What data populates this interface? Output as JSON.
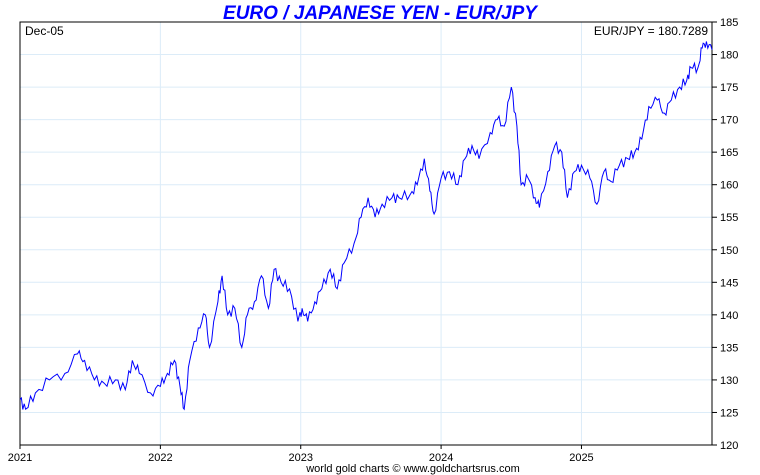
{
  "chart_data": {
    "type": "line",
    "title": "EURO / JAPANESE YEN - EUR/JPY",
    "date_label": "Dec-05",
    "current_value_label": "EUR/JPY = 180.7289",
    "footer": "world gold charts © www.goldchartsrus.com",
    "xlabel": "",
    "ylabel": "",
    "xlim": [
      2021,
      2025.93
    ],
    "ylim": [
      120,
      185
    ],
    "x_ticks": [
      2021,
      2022,
      2023,
      2024,
      2025
    ],
    "x_tick_labels": [
      "2021",
      "2022",
      "2023",
      "2024",
      "2025"
    ],
    "y_ticks": [
      120,
      125,
      130,
      135,
      140,
      145,
      150,
      155,
      160,
      165,
      170,
      175,
      180,
      185
    ],
    "y_tick_labels": [
      "120",
      "125",
      "130",
      "135",
      "140",
      "145",
      "150",
      "155",
      "160",
      "165",
      "170",
      "175",
      "180",
      "185"
    ],
    "grid": true,
    "line_color": "#0000ff",
    "series": [
      {
        "name": "EUR/JPY",
        "x": [
          2021.0,
          2021.04,
          2021.11,
          2021.21,
          2021.32,
          2021.41,
          2021.46,
          2021.53,
          2021.6,
          2021.68,
          2021.75,
          2021.8,
          2021.85,
          2021.93,
          2022.0,
          2022.05,
          2022.1,
          2022.14,
          2022.17,
          2022.21,
          2022.27,
          2022.32,
          2022.35,
          2022.41,
          2022.44,
          2022.48,
          2022.53,
          2022.58,
          2022.62,
          2022.67,
          2022.72,
          2022.77,
          2022.81,
          2022.86,
          2022.92,
          2022.98,
          2023.01,
          2023.05,
          2023.1,
          2023.15,
          2023.21,
          2023.26,
          2023.31,
          2023.38,
          2023.43,
          2023.48,
          2023.53,
          2023.58,
          2023.65,
          2023.7,
          2023.78,
          2023.83,
          2023.88,
          2023.92,
          2023.95,
          2024.0,
          2024.06,
          2024.12,
          2024.17,
          2024.22,
          2024.27,
          2024.35,
          2024.4,
          2024.45,
          2024.5,
          2024.54,
          2024.57,
          2024.62,
          2024.67,
          2024.7,
          2024.76,
          2024.81,
          2024.86,
          2024.9,
          2024.95,
          2025.0,
          2025.06,
          2025.11,
          2025.16,
          2025.21,
          2025.27,
          2025.33,
          2025.38,
          2025.43,
          2025.48,
          2025.54,
          2025.59,
          2025.64,
          2025.7,
          2025.75,
          2025.78,
          2025.83,
          2025.86,
          2025.89,
          2025.93
        ],
        "y": [
          127,
          125.5,
          128,
          130,
          131,
          134,
          133,
          130,
          129.5,
          130,
          128.5,
          133,
          131,
          128,
          129,
          131,
          133,
          129,
          125.5,
          133,
          138,
          140,
          135,
          142,
          146,
          140,
          141,
          135,
          140,
          142,
          146,
          141,
          147,
          145,
          144,
          139,
          141,
          139,
          142,
          144,
          147,
          144,
          148,
          151,
          155,
          158,
          155,
          157,
          158,
          158,
          158.5,
          160,
          164,
          159,
          155.5,
          161,
          162,
          160,
          164,
          166,
          164,
          168,
          170,
          169,
          175,
          169,
          160,
          161,
          158,
          156.5,
          162,
          166,
          165,
          158,
          162,
          163,
          161,
          157,
          162,
          160.5,
          163,
          164,
          165,
          167,
          172,
          173,
          171,
          173,
          175,
          176,
          178,
          178,
          181,
          182,
          180.73
        ]
      }
    ]
  }
}
